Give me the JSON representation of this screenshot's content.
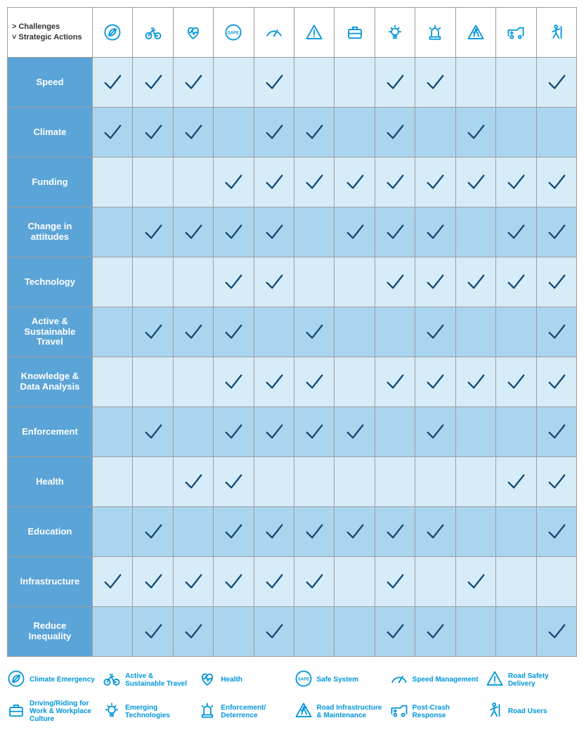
{
  "corner": {
    "line1": "> Challenges",
    "line2": "˅ Strategic Actions"
  },
  "colors": {
    "icon_stroke": "#0095da",
    "check_stroke": "#144a74",
    "row_header_bg": "#5ba4d7",
    "cell_bg_odd": "#d6ecf8",
    "cell_bg_even": "#a9d5ee",
    "legend_text": "#0095da"
  },
  "columns": [
    {
      "key": "climate",
      "icon": "leaf",
      "legend": "Climate Emergency"
    },
    {
      "key": "active",
      "icon": "bike",
      "legend": "Active & Sustainable Travel"
    },
    {
      "key": "health",
      "icon": "heart",
      "legend": "Health"
    },
    {
      "key": "safe",
      "icon": "safe",
      "legend": "Safe System"
    },
    {
      "key": "speed",
      "icon": "speedo",
      "legend": "Speed Management"
    },
    {
      "key": "delivery",
      "icon": "warning",
      "legend": "Road Safety Delivery"
    },
    {
      "key": "workplace",
      "icon": "briefcase",
      "legend": "Driving/Riding for Work & Workplace Culture"
    },
    {
      "key": "emerging",
      "icon": "bulb",
      "legend": "Emerging Technologies"
    },
    {
      "key": "enforce",
      "icon": "siren",
      "legend": "Enforcement/ Deterrence"
    },
    {
      "key": "infra",
      "icon": "roadwork",
      "legend": "Road Infrastructure & Maintenance"
    },
    {
      "key": "postcrash",
      "icon": "ambulance",
      "legend": "Post-Crash Response"
    },
    {
      "key": "users",
      "icon": "pedestrian",
      "legend": "Road Users"
    }
  ],
  "rows": [
    {
      "label": "Speed",
      "checks": [
        1,
        1,
        1,
        0,
        1,
        0,
        0,
        1,
        1,
        0,
        0,
        1
      ]
    },
    {
      "label": "Climate",
      "checks": [
        1,
        1,
        1,
        0,
        1,
        1,
        0,
        1,
        0,
        1,
        0,
        0
      ]
    },
    {
      "label": "Funding",
      "checks": [
        0,
        0,
        0,
        1,
        1,
        1,
        1,
        1,
        1,
        1,
        1,
        1
      ]
    },
    {
      "label": "Change in attitudes",
      "checks": [
        0,
        1,
        1,
        1,
        1,
        0,
        1,
        1,
        1,
        0,
        1,
        1
      ]
    },
    {
      "label": "Technology",
      "checks": [
        0,
        0,
        0,
        1,
        1,
        0,
        0,
        1,
        1,
        1,
        1,
        1
      ]
    },
    {
      "label": "Active & Sustainable Travel",
      "checks": [
        0,
        1,
        1,
        1,
        0,
        1,
        0,
        0,
        1,
        0,
        0,
        1
      ]
    },
    {
      "label": "Knowledge & Data Analysis",
      "checks": [
        0,
        0,
        0,
        1,
        1,
        1,
        0,
        1,
        1,
        1,
        1,
        1
      ]
    },
    {
      "label": "Enforcement",
      "checks": [
        0,
        1,
        0,
        1,
        1,
        1,
        1,
        0,
        1,
        0,
        0,
        1
      ]
    },
    {
      "label": "Health",
      "checks": [
        0,
        0,
        1,
        1,
        0,
        0,
        0,
        0,
        0,
        0,
        1,
        1
      ]
    },
    {
      "label": "Education",
      "checks": [
        0,
        1,
        0,
        1,
        1,
        1,
        1,
        1,
        1,
        0,
        0,
        1
      ]
    },
    {
      "label": "Infrastructure",
      "checks": [
        1,
        1,
        1,
        1,
        1,
        1,
        0,
        1,
        0,
        1,
        0,
        0
      ]
    },
    {
      "label": "Reduce Inequality",
      "checks": [
        0,
        1,
        1,
        0,
        1,
        0,
        0,
        1,
        1,
        0,
        0,
        1
      ]
    }
  ]
}
